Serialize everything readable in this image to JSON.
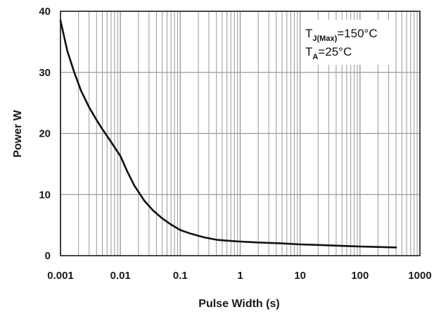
{
  "chart_data": {
    "type": "line",
    "title": "",
    "xlabel": "Pulse Width (s)",
    "ylabel": "Power W",
    "x_scale": "log",
    "xlim": [
      0.001,
      1000
    ],
    "ylim": [
      0,
      40
    ],
    "grid": true,
    "x_tick_labels": [
      "0.001",
      "0.01",
      "0.1",
      "1",
      "10",
      "100",
      "1000"
    ],
    "y_tick_labels": [
      "0",
      "10",
      "20",
      "30",
      "40"
    ],
    "annotation": {
      "line1_prefix": "T",
      "line1_sub": "J(Max)",
      "line1_rest": "=150°C",
      "line2_prefix": "T",
      "line2_sub": "A",
      "line2_rest": "=25°C",
      "position": "top-right"
    },
    "series": [
      {
        "color": "#111111",
        "x": [
          0.001,
          0.0013,
          0.0017,
          0.0022,
          0.003,
          0.004,
          0.005,
          0.007,
          0.01,
          0.013,
          0.017,
          0.025,
          0.035,
          0.05,
          0.07,
          0.1,
          0.15,
          0.25,
          0.4,
          0.6,
          1,
          2,
          5,
          10,
          20,
          50,
          100,
          200,
          400
        ],
        "y": [
          38.5,
          33.5,
          30.0,
          27.0,
          24.3,
          22.2,
          20.7,
          18.6,
          16.3,
          13.8,
          11.5,
          9.0,
          7.4,
          6.1,
          5.1,
          4.2,
          3.6,
          3.0,
          2.6,
          2.45,
          2.3,
          2.15,
          2.0,
          1.85,
          1.75,
          1.6,
          1.5,
          1.42,
          1.35
        ]
      }
    ]
  },
  "colors": {
    "grid": "#9a9a9a",
    "axis": "#1a1a1a",
    "curve": "#111111"
  }
}
